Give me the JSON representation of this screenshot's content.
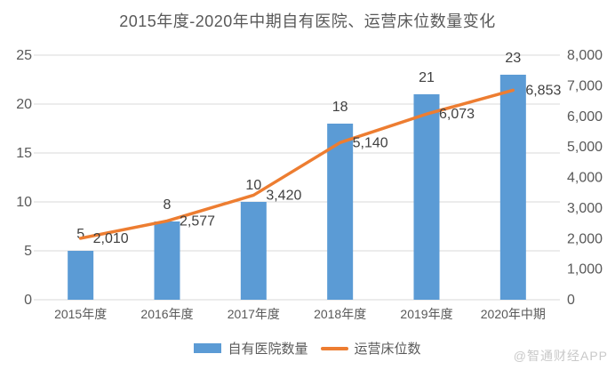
{
  "title": "2015年度-2020年中期自有医院、运营床位数量变化",
  "watermark": "@智通财经APP",
  "colors": {
    "bar": "#5B9BD5",
    "line": "#ED7D31",
    "grid": "#D9D9D9",
    "axis_text": "#595959",
    "data_label": "#404040",
    "title_text": "#595959",
    "watermark_text": "#C9C9C9"
  },
  "legend": [
    {
      "label": "自有医院数量",
      "swatch": "bar-swatch"
    },
    {
      "label": "运营床位数",
      "swatch": "line-swatch"
    }
  ],
  "chart_data": {
    "type": "bar+line",
    "title": "2015年度-2020年中期自有医院、运营床位数量变化",
    "categories": [
      "2015年度",
      "2016年度",
      "2017年度",
      "2018年度",
      "2019年度",
      "2020年中期"
    ],
    "series": [
      {
        "name": "自有医院数量",
        "type": "bar",
        "axis": "left",
        "values": [
          5,
          8,
          10,
          18,
          21,
          23
        ],
        "labels": [
          "5",
          "8",
          "10",
          "18",
          "21",
          "23"
        ],
        "color": "#5B9BD5"
      },
      {
        "name": "运营床位数",
        "type": "line",
        "axis": "right",
        "values": [
          2010,
          2577,
          3420,
          5140,
          6073,
          6853
        ],
        "labels": [
          "2,010",
          "2,577",
          "3,420",
          "5,140",
          "6,073",
          "6,853"
        ],
        "color": "#ED7D31"
      }
    ],
    "left_axis": {
      "min": 0,
      "max": 25,
      "step": 5,
      "ticks": [
        "0",
        "5",
        "10",
        "15",
        "20",
        "25"
      ]
    },
    "right_axis": {
      "min": 0,
      "max": 8000,
      "step": 1000,
      "ticks": [
        "0",
        "1,000",
        "2,000",
        "3,000",
        "4,000",
        "5,000",
        "6,000",
        "7,000",
        "8,000"
      ]
    },
    "grid": true,
    "legend_position": "bottom"
  }
}
